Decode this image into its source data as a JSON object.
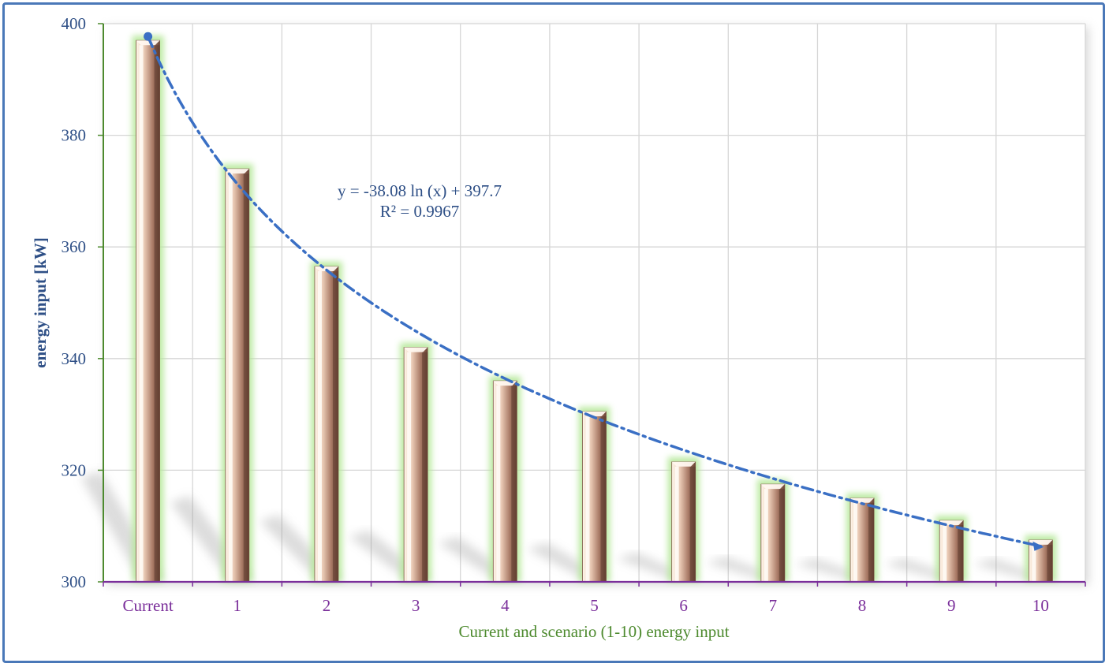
{
  "chart_data": {
    "type": "bar",
    "categories": [
      "Current",
      "1",
      "2",
      "3",
      "4",
      "5",
      "6",
      "7",
      "8",
      "9",
      "10"
    ],
    "values": [
      397,
      374,
      356.5,
      342,
      336,
      330.5,
      321.5,
      317.5,
      315,
      311,
      307.5
    ],
    "trendline": {
      "type": "logarithmic",
      "a": -38.08,
      "b": 397.7,
      "equation": "y = -38.08 ln (x) + 397.7",
      "r_squared": "R² = 0.9967"
    },
    "xlabel": "Current and scenario (1-10) energy input",
    "ylabel": "energy input [kW]",
    "ylim": [
      300,
      400
    ],
    "yticks": [
      "300",
      "320",
      "340",
      "360",
      "380",
      "400"
    ],
    "grid": true
  },
  "colors": {
    "frame": "#4a78b8",
    "bar_main": "#b07e6a",
    "bar_glow": "#b6e89a",
    "trendline": "#3a6fc4",
    "x_axis": "#7a2e9a",
    "y_axis": "#4d8a2e"
  }
}
